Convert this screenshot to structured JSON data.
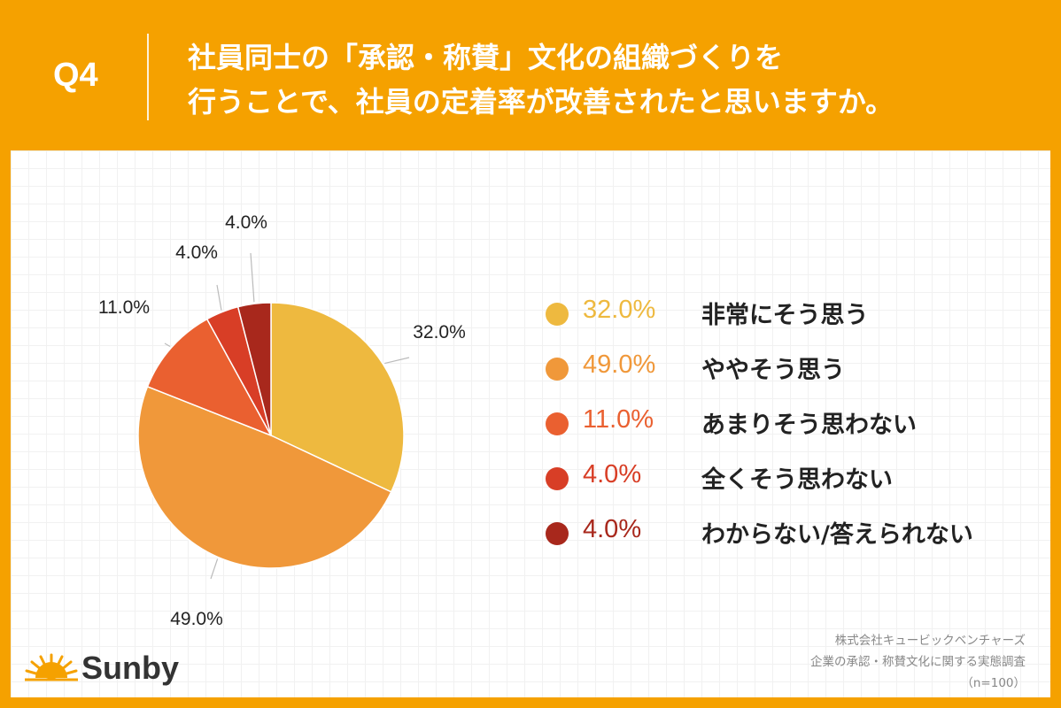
{
  "header": {
    "q_label": "Q4",
    "title_line1": "社員同士の「承認・称賛」文化の組織づくりを",
    "title_line2": "行うことで、社員の定着率が改善されたと思いますか。"
  },
  "chart_data": {
    "type": "pie",
    "categories": [
      "非常にそう思う",
      "ややそう思う",
      "あまりそう思わない",
      "全くそう思わない",
      "わからない/答えられない"
    ],
    "values": [
      32.0,
      49.0,
      11.0,
      4.0,
      4.0
    ],
    "value_labels": [
      "32.0%",
      "49.0%",
      "11.0%",
      "4.0%",
      "4.0%"
    ],
    "colors": [
      "#eeb93f",
      "#f0983a",
      "#ea6030",
      "#d83e26",
      "#a8281c"
    ],
    "start": "12 o'clock",
    "direction": "clockwise",
    "legend_position": "right"
  },
  "footer": {
    "logo_text": "Sunby",
    "source_line1": "株式会社キュービックベンチャーズ",
    "source_line2": "企業の承認・称賛文化に関する実態調査",
    "source_line3": "（n=100）"
  }
}
